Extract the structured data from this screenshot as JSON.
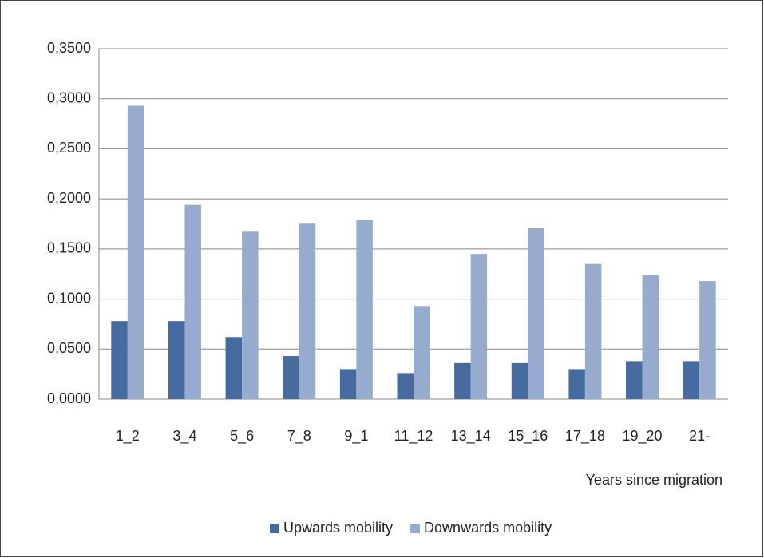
{
  "chart_data": {
    "type": "bar",
    "x_label": "Years since migration",
    "categories": [
      "1_2",
      "3_4",
      "5_6",
      "7_8",
      "9_1",
      "11_12",
      "13_14",
      "15_16",
      "17_18",
      "19_20",
      "21-"
    ],
    "series": [
      {
        "name": "Upwards mobility",
        "color": "#456b9f",
        "values": [
          0.078,
          0.078,
          0.062,
          0.043,
          0.03,
          0.026,
          0.036,
          0.036,
          0.03,
          0.038,
          0.038
        ]
      },
      {
        "name": "Downwards mobility",
        "color": "#97abcf",
        "values": [
          0.293,
          0.194,
          0.168,
          0.176,
          0.179,
          0.093,
          0.145,
          0.171,
          0.135,
          0.124,
          0.118
        ]
      }
    ],
    "ylim": [
      0,
      0.35
    ],
    "yticks": [
      {
        "value": 0,
        "label": "0,0000"
      },
      {
        "value": 0.05,
        "label": "0,0500"
      },
      {
        "value": 0.1,
        "label": "0,1000"
      },
      {
        "value": 0.15,
        "label": "0,1500"
      },
      {
        "value": 0.2,
        "label": "0,2000"
      },
      {
        "value": 0.25,
        "label": "0,2500"
      },
      {
        "value": 0.3,
        "label": "0,3000"
      },
      {
        "value": 0.35,
        "label": "0,3500"
      }
    ],
    "grid": true,
    "legend": "bottom"
  }
}
